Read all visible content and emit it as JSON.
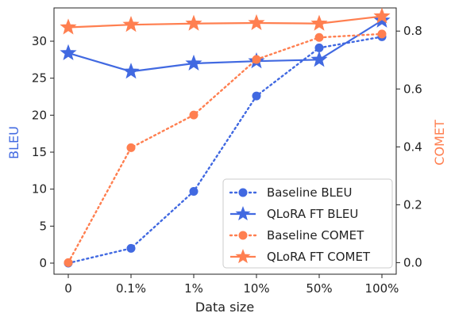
{
  "chart_data": {
    "type": "line",
    "xlabel": "Data size",
    "categories": [
      "0",
      "0.1%",
      "1%",
      "10%",
      "50%",
      "100%"
    ],
    "y_left": {
      "label": "BLEU",
      "range": [
        -1.5,
        34.5
      ],
      "ticks": [
        0,
        5,
        10,
        15,
        20,
        25,
        30
      ],
      "color": "#4169E1"
    },
    "y_right": {
      "label": "COMET",
      "range": [
        -0.04,
        0.88
      ],
      "ticks": [
        0.0,
        0.2,
        0.4,
        0.6,
        0.8
      ],
      "color": "#FF7F50"
    },
    "series": [
      {
        "name": "Baseline BLEU",
        "axis": "left",
        "color": "#4169E1",
        "linestyle": "dotted",
        "marker": "circle",
        "values": [
          0.0,
          2.0,
          9.7,
          22.6,
          29.1,
          30.6
        ]
      },
      {
        "name": "QLoRA FT BLEU",
        "axis": "left",
        "color": "#4169E1",
        "linestyle": "solid",
        "marker": "star",
        "values": [
          28.4,
          25.9,
          27.0,
          27.3,
          27.5,
          32.8
        ]
      },
      {
        "name": "Baseline COMET",
        "axis": "right",
        "color": "#FF7F50",
        "linestyle": "dotted",
        "marker": "circle",
        "values": [
          0.0,
          0.397,
          0.51,
          0.702,
          0.778,
          0.79
        ]
      },
      {
        "name": "QLoRA FT COMET",
        "axis": "right",
        "color": "#FF7F50",
        "linestyle": "solid",
        "marker": "star",
        "values": [
          0.813,
          0.822,
          0.826,
          0.828,
          0.826,
          0.851
        ]
      }
    ],
    "legend": "bottom-right",
    "grid": false
  }
}
